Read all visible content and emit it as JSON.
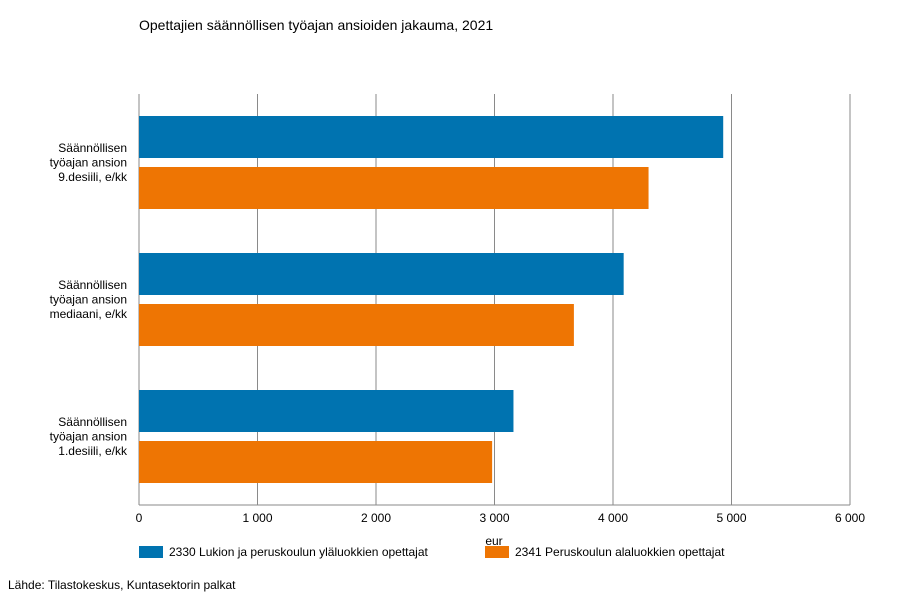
{
  "chart_data": {
    "type": "bar",
    "orientation": "horizontal",
    "title": "Opettajien säännöllisen työajan ansioiden jakauma, 2021",
    "xlabel": "eur",
    "ylabel": "",
    "xlim": [
      0,
      6000
    ],
    "x_ticks": [
      0,
      1000,
      2000,
      3000,
      4000,
      5000,
      6000
    ],
    "x_tick_labels": [
      "0",
      "1 000",
      "2 000",
      "3 000",
      "4 000",
      "5 000",
      "6 000"
    ],
    "grid": "vertical",
    "legend_position": "bottom",
    "categories": [
      [
        "Säännöllisen",
        "työajan ansion",
        "9.desiili, e/kk"
      ],
      [
        "Säännöllisen",
        "työajan ansion",
        "mediaani, e/kk"
      ],
      [
        "Säännöllisen",
        "työajan ansion",
        "1.desiili, e/kk"
      ]
    ],
    "series": [
      {
        "name": "2330 Lukion ja peruskoulun yläluokkien opettajat",
        "color": "#0073b0",
        "values": [
          4930,
          4090,
          3160
        ]
      },
      {
        "name": "2341 Peruskoulun alaluokkien opettajat",
        "color": "#ee7503",
        "values": [
          4300,
          3670,
          2980
        ]
      }
    ]
  },
  "source": "Lähde: Tilastokeskus, Kuntasektorin palkat"
}
